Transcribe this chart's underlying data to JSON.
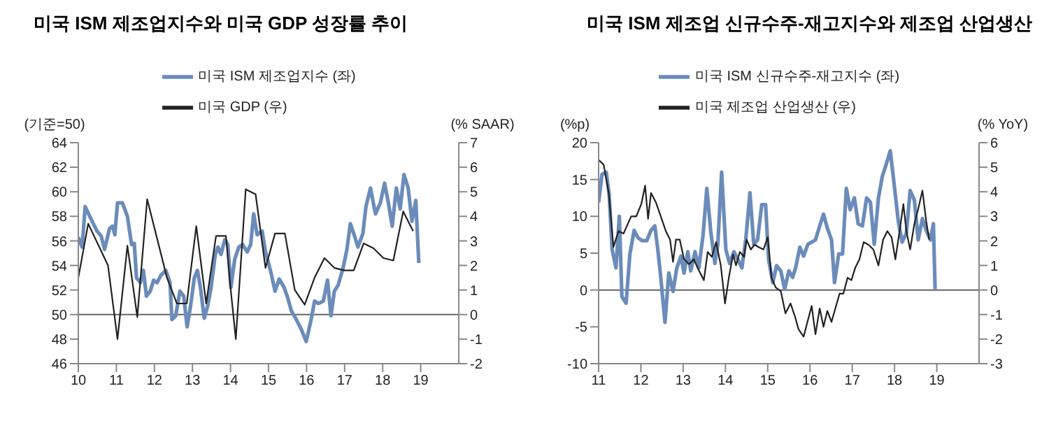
{
  "chart_data": [
    {
      "type": "line",
      "title": "미국 ISM 제조업지수와 미국 GDP 성장률 추이",
      "ylabel": "(기준=50)",
      "y2label": "(% SAAR)",
      "xlim": [
        10,
        20
      ],
      "xticks": [
        10,
        11,
        12,
        13,
        14,
        15,
        16,
        17,
        18,
        19
      ],
      "ylim": [
        46,
        64
      ],
      "yticks": [
        46,
        48,
        50,
        52,
        54,
        56,
        58,
        60,
        62,
        64
      ],
      "y2lim": [
        -2,
        7
      ],
      "y2ticks": [
        -2,
        -1,
        0,
        1,
        2,
        3,
        4,
        5,
        6,
        7
      ],
      "legend": "top",
      "marker": "none",
      "ref_lines": [
        {
          "axis": "y",
          "value": 50
        }
      ],
      "series": [
        {
          "name": "미국 ISM 제조업지수 (좌)",
          "color": "#6b8cba",
          "x": [
            10.0,
            10.1,
            10.18,
            10.3,
            10.49,
            10.6,
            10.69,
            10.82,
            10.9,
            10.96,
            11.03,
            11.16,
            11.29,
            11.4,
            11.47,
            11.53,
            11.63,
            11.71,
            11.79,
            11.89,
            11.98,
            12.07,
            12.17,
            12.3,
            12.41,
            12.46,
            12.56,
            12.67,
            12.77,
            12.86,
            12.95,
            13.05,
            13.13,
            13.21,
            13.31,
            13.4,
            13.49,
            13.6,
            13.67,
            13.75,
            13.85,
            13.93,
            14.01,
            14.11,
            14.22,
            14.32,
            14.44,
            14.53,
            14.61,
            14.7,
            14.83,
            14.92,
            15.0,
            15.08,
            15.17,
            15.28,
            15.41,
            15.51,
            15.6,
            15.73,
            15.86,
            15.99,
            16.12,
            16.21,
            16.31,
            16.44,
            16.55,
            16.64,
            16.73,
            16.83,
            16.96,
            17.06,
            17.15,
            17.24,
            17.35,
            17.48,
            17.56,
            17.68,
            17.81,
            17.94,
            18.05,
            18.15,
            18.25,
            18.36,
            18.46,
            18.56,
            18.67,
            18.77,
            18.87,
            18.95
          ],
          "values": [
            56.3,
            55.5,
            58.8,
            58.0,
            56.8,
            56.4,
            55.3,
            57.0,
            57.2,
            56.5,
            59.1,
            59.1,
            58.0,
            55.7,
            55.8,
            53.0,
            52.6,
            53.6,
            51.5,
            51.9,
            52.8,
            52.6,
            53.2,
            53.6,
            52.6,
            49.6,
            49.9,
            51.9,
            51.5,
            49.0,
            50.7,
            53.0,
            53.6,
            52.2,
            49.7,
            50.7,
            52.2,
            54.9,
            55.5,
            54.9,
            56.1,
            55.7,
            52.2,
            54.5,
            55.5,
            55.7,
            55.1,
            55.7,
            58.2,
            56.5,
            56.8,
            55.1,
            54.2,
            53.2,
            51.9,
            52.9,
            52.2,
            51.3,
            50.3,
            49.6,
            48.8,
            47.8,
            49.6,
            51.1,
            50.9,
            51.1,
            52.8,
            49.9,
            51.9,
            52.4,
            53.8,
            55.3,
            57.4,
            56.6,
            55.5,
            56.6,
            58.8,
            60.3,
            58.2,
            59.1,
            60.7,
            59.1,
            57.2,
            60.3,
            58.6,
            61.4,
            60.3,
            57.6,
            59.3,
            54.2
          ]
        },
        {
          "name": "미국 GDP (우)",
          "color": "#222222",
          "axis": "y2",
          "x": [
            10.0,
            10.26,
            10.78,
            11.03,
            11.29,
            11.55,
            11.81,
            12.33,
            12.59,
            12.85,
            13.1,
            13.36,
            13.62,
            13.88,
            14.0,
            14.14,
            14.4,
            14.66,
            14.92,
            15.17,
            15.43,
            15.69,
            15.95,
            16.21,
            16.47,
            16.73,
            16.99,
            17.24,
            17.5,
            17.76,
            18.02,
            18.28,
            18.54,
            18.8
          ],
          "values": [
            1.5,
            3.7,
            2.0,
            -1.0,
            2.8,
            -0.1,
            4.7,
            1.5,
            0.45,
            0.45,
            3.6,
            0.45,
            3.2,
            3.2,
            1.1,
            -1.0,
            5.1,
            4.9,
            1.9,
            3.3,
            3.3,
            1.0,
            0.4,
            1.5,
            2.3,
            1.9,
            1.8,
            1.8,
            2.9,
            2.7,
            2.3,
            2.2,
            4.2,
            3.4
          ]
        }
      ]
    },
    {
      "type": "line",
      "title": "미국 ISM 제조업 신규수주-재고지수와 제조업 산업생산",
      "ylabel": "(%p)",
      "y2label": "(% YoY)",
      "xlim": [
        11,
        20
      ],
      "xticks": [
        11,
        12,
        13,
        14,
        15,
        16,
        17,
        18,
        19
      ],
      "ylim": [
        -10,
        20
      ],
      "yticks": [
        -10,
        -5,
        0,
        5,
        10,
        15,
        20
      ],
      "y2lim": [
        -3,
        6
      ],
      "y2ticks": [
        -3,
        -2,
        -1,
        0,
        1,
        2,
        3,
        4,
        5,
        6
      ],
      "legend": "top",
      "marker": "none",
      "ref_lines": [
        {
          "axis": "y",
          "value": 0
        }
      ],
      "series": [
        {
          "name": "미국 ISM 신규수주-재고지수 (좌)",
          "color": "#6b8cba",
          "x": [
            11.0,
            11.08,
            11.18,
            11.25,
            11.32,
            11.41,
            11.49,
            11.55,
            11.65,
            11.74,
            11.84,
            11.93,
            12.03,
            12.14,
            12.24,
            12.33,
            12.4,
            12.47,
            12.57,
            12.66,
            12.76,
            12.85,
            12.95,
            13.02,
            13.11,
            13.18,
            13.28,
            13.37,
            13.47,
            13.56,
            13.65,
            13.75,
            13.82,
            13.91,
            14.01,
            14.1,
            14.2,
            14.29,
            14.39,
            14.48,
            14.58,
            14.67,
            14.76,
            14.86,
            14.95,
            15.02,
            15.12,
            15.21,
            15.31,
            15.4,
            15.5,
            15.59,
            15.66,
            15.76,
            15.85,
            15.95,
            16.04,
            16.13,
            16.23,
            16.32,
            16.41,
            16.51,
            16.58,
            16.68,
            16.77,
            16.86,
            16.95,
            17.05,
            17.14,
            17.24,
            17.34,
            17.43,
            17.52,
            17.62,
            17.71,
            17.8,
            17.9,
            17.99,
            18.09,
            18.18,
            18.28,
            18.37,
            18.47,
            18.56,
            18.66,
            18.75,
            18.85,
            18.92,
            18.96
          ],
          "values": [
            11.9,
            15.7,
            16.0,
            12.9,
            5.5,
            3.0,
            10.0,
            -0.9,
            -1.8,
            4.9,
            8.1,
            7.1,
            6.7,
            6.7,
            8.1,
            8.7,
            5.5,
            1.7,
            -4.4,
            2.3,
            -0.2,
            3.0,
            4.6,
            2.3,
            5.2,
            2.6,
            5.2,
            3.0,
            7.4,
            13.8,
            8.1,
            3.6,
            6.2,
            16.0,
            5.5,
            3.6,
            5.2,
            4.2,
            3.0,
            6.8,
            13.2,
            6.2,
            6.8,
            11.6,
            11.6,
            4.2,
            1.0,
            3.3,
            2.6,
            0.1,
            2.6,
            1.7,
            3.0,
            5.8,
            4.6,
            6.2,
            6.5,
            6.8,
            8.7,
            10.3,
            8.4,
            6.8,
            1.0,
            4.9,
            4.9,
            13.8,
            10.9,
            12.5,
            9.0,
            8.7,
            12.5,
            11.9,
            6.2,
            12.5,
            15.4,
            17.0,
            18.9,
            14.4,
            9.3,
            6.5,
            7.7,
            13.5,
            12.2,
            6.8,
            9.7,
            8.1,
            6.8,
            9.0,
            0.1
          ]
        },
        {
          "name": "미국 제조업 산업생산 (우)",
          "color": "#222222",
          "axis": "y2",
          "x": [
            11.0,
            11.12,
            11.24,
            11.35,
            11.47,
            11.59,
            11.77,
            11.89,
            12.01,
            12.1,
            12.17,
            12.24,
            12.36,
            12.47,
            12.59,
            12.69,
            12.76,
            12.83,
            12.92,
            13.02,
            13.14,
            13.25,
            13.37,
            13.49,
            13.58,
            13.68,
            13.78,
            13.89,
            13.99,
            14.08,
            14.18,
            14.25,
            14.34,
            14.44,
            14.5,
            14.6,
            14.69,
            14.78,
            14.9,
            15.0,
            15.09,
            15.19,
            15.31,
            15.42,
            15.54,
            15.64,
            15.73,
            15.85,
            15.94,
            16.04,
            16.13,
            16.23,
            16.32,
            16.41,
            16.51,
            16.6,
            16.7,
            16.79,
            16.89,
            16.98,
            17.07,
            17.17,
            17.27,
            17.38,
            17.5,
            17.62,
            17.73,
            17.83,
            17.93,
            18.02,
            18.12,
            18.21,
            18.28,
            18.37,
            18.47,
            18.56,
            18.66,
            18.75,
            18.82
          ],
          "values": [
            5.3,
            5.1,
            3.95,
            1.75,
            2.4,
            2.3,
            3.0,
            3.0,
            3.5,
            4.25,
            2.9,
            3.95,
            3.55,
            3.0,
            2.4,
            2.05,
            1.15,
            2.05,
            2.05,
            1.25,
            1.05,
            1.25,
            0.8,
            0.4,
            1.55,
            1.35,
            1.95,
            1.0,
            -0.55,
            0.5,
            1.45,
            1.0,
            1.55,
            1.35,
            2.05,
            1.65,
            1.85,
            1.75,
            1.65,
            2.15,
            0.5,
            0.1,
            -0.05,
            -0.95,
            -0.55,
            -1.05,
            -1.6,
            -1.9,
            -1.3,
            -0.65,
            -1.8,
            -0.75,
            -1.5,
            -0.85,
            -1.3,
            -0.75,
            -0.15,
            -0.15,
            0.5,
            0.4,
            0.9,
            1.25,
            1.95,
            1.85,
            1.65,
            1.0,
            2.05,
            2.4,
            2.15,
            1.25,
            2.4,
            3.5,
            2.4,
            1.65,
            2.7,
            3.3,
            4.05,
            2.8,
            2.05
          ]
        }
      ]
    }
  ]
}
